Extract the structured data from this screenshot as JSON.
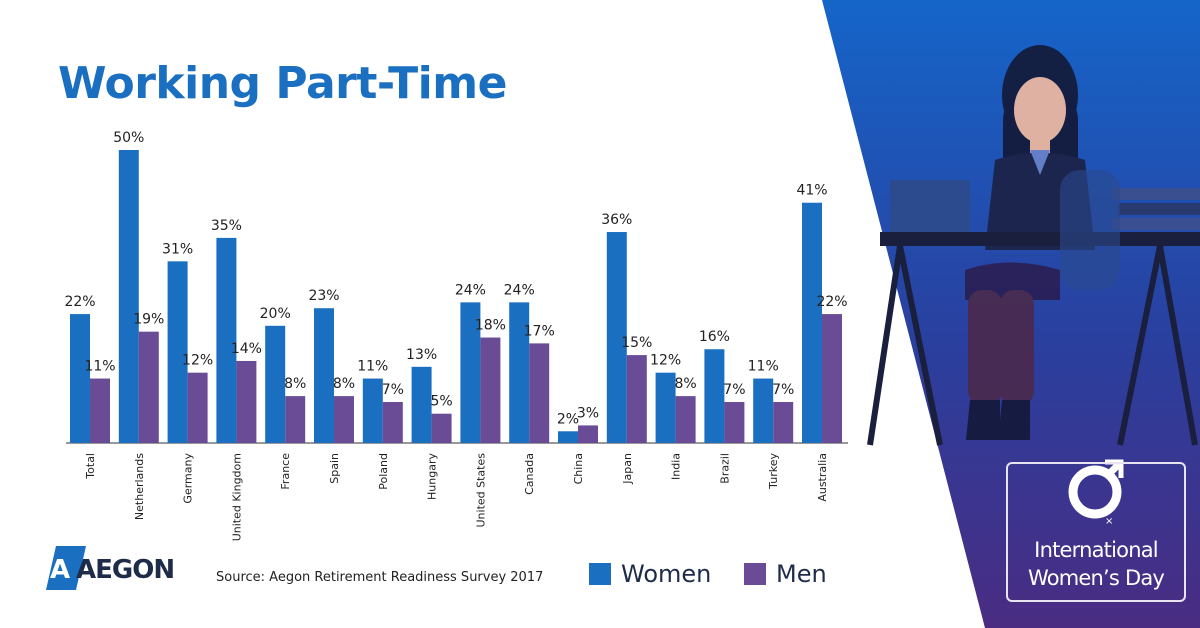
{
  "title": "Working Part-Time",
  "source": "Source: Aegon Retirement Readiness Survey 2017",
  "brand": {
    "logo_text": "AEGON"
  },
  "badge": {
    "line1": "International",
    "line2": "Women’s Day"
  },
  "colors": {
    "women": "#1a6fc0",
    "men": "#6a4c96",
    "title": "#1a6fc0"
  },
  "legend": [
    {
      "label": "Women",
      "color": "#1a6fc0"
    },
    {
      "label": "Men",
      "color": "#6a4c96"
    }
  ],
  "chart_data": {
    "type": "bar",
    "title": "Working Part-Time",
    "categories": [
      "Total",
      "Netherlands",
      "Germany",
      "United Kingdom",
      "France",
      "Spain",
      "Poland",
      "Hungary",
      "United States",
      "Canada",
      "China",
      "Japan",
      "India",
      "Brazil",
      "Turkey",
      "Australia"
    ],
    "series": [
      {
        "name": "Women",
        "values": [
          22,
          50,
          31,
          35,
          20,
          23,
          11,
          13,
          24,
          24,
          2,
          36,
          12,
          16,
          11,
          41
        ]
      },
      {
        "name": "Men",
        "values": [
          11,
          19,
          12,
          14,
          8,
          8,
          7,
          5,
          18,
          17,
          3,
          15,
          8,
          7,
          7,
          22
        ]
      }
    ],
    "value_suffix": "%",
    "ylim": [
      0,
      50
    ],
    "grid": false,
    "legend_position": "bottom-right"
  }
}
